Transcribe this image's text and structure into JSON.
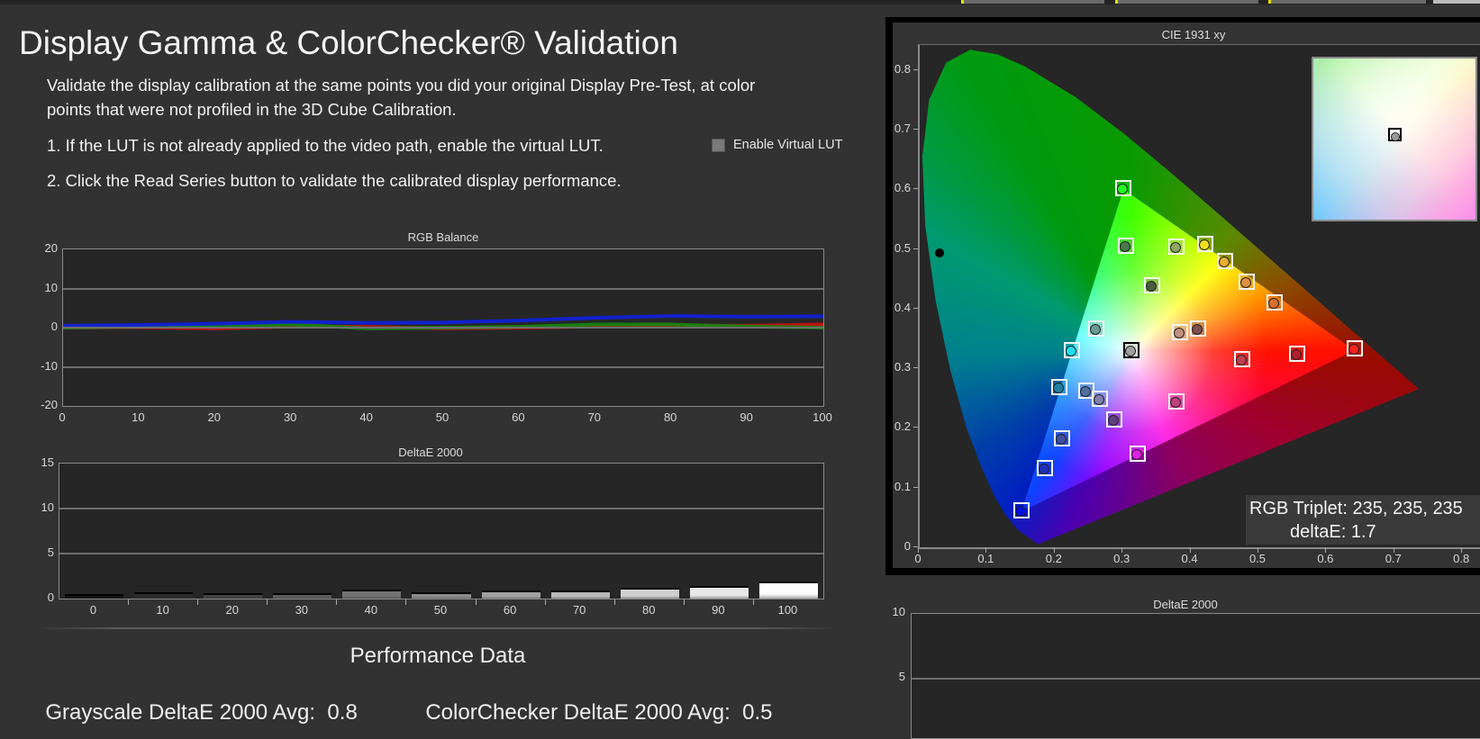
{
  "header": {
    "title": "Display Gamma & ColorChecker® Validation",
    "intro_line1": "Validate the display calibration at the same points you did your original Display Pre-Test, at color",
    "intro_line2": "points that were not profiled in the 3D Cube Calibration.",
    "step1": "1.  If the LUT is not already applied to the video path, enable the virtual LUT.",
    "step2": "2.  Click the Read Series button to validate the calibrated display performance."
  },
  "virtual_lut": {
    "label": "Enable Virtual LUT",
    "checked": false
  },
  "performance": {
    "title": "Performance Data",
    "grayscale_label": "Grayscale DeltaE 2000 Avg:",
    "grayscale_value": "0.8",
    "colorchecker_label": "ColorChecker DeltaE 2000 Avg:",
    "colorchecker_value": "0.5"
  },
  "readout": {
    "triplet": "RGB Triplet: 235, 235, 235",
    "deltae": "deltaE: 1.7"
  },
  "chart_data": [
    {
      "type": "line",
      "title": "RGB Balance",
      "x": [
        0,
        10,
        20,
        30,
        40,
        50,
        60,
        70,
        80,
        90,
        100
      ],
      "xticks": [
        "0",
        "10",
        "20",
        "30",
        "40",
        "50",
        "60",
        "70",
        "80",
        "90",
        "100"
      ],
      "yticks": [
        "20",
        "10",
        "0",
        "-10",
        "-20"
      ],
      "ylim": [
        -20,
        20
      ],
      "grid": true,
      "series": [
        {
          "name": "Red",
          "color": "#d01010",
          "values": [
            0,
            0.1,
            -0.2,
            0.3,
            0.2,
            -0.2,
            0,
            0.3,
            0.5,
            0.5,
            0.8
          ]
        },
        {
          "name": "Green",
          "color": "#108a10",
          "values": [
            0,
            0.2,
            0.3,
            0.8,
            -0.2,
            0,
            0.2,
            0.8,
            0.8,
            0.3,
            0
          ]
        },
        {
          "name": "Blue",
          "color": "#1020e0",
          "values": [
            0.5,
            0.7,
            1.0,
            1.5,
            1.2,
            1.3,
            1.8,
            2.5,
            3.0,
            2.8,
            2.9
          ]
        }
      ]
    },
    {
      "type": "bar",
      "title": "DeltaE 2000",
      "categories": [
        "0",
        "10",
        "20",
        "30",
        "40",
        "50",
        "60",
        "70",
        "80",
        "90",
        "100"
      ],
      "values": [
        0.3,
        0.5,
        0.4,
        0.4,
        0.8,
        0.5,
        0.7,
        0.7,
        1.0,
        1.2,
        1.7
      ],
      "yticks": [
        "15",
        "10",
        "5",
        "0"
      ],
      "ylim": [
        0,
        15
      ],
      "grid": true
    },
    {
      "type": "scatter",
      "title": "CIE 1931 xy",
      "xlim": [
        0,
        0.8
      ],
      "ylim": [
        0,
        0.8
      ],
      "xticks": [
        "0",
        "0.1",
        "0.2",
        "0.3",
        "0.4",
        "0.5",
        "0.6",
        "0.7",
        "0.8"
      ],
      "yticks": [
        "0.8",
        "0.7",
        "0.6",
        "0.5",
        "0.4",
        "0.3",
        "0.2",
        "0.1",
        "0"
      ],
      "gamut": {
        "red": [
          0.64,
          0.33
        ],
        "green": [
          0.3,
          0.6
        ],
        "blue": [
          0.15,
          0.06
        ],
        "white": [
          0.3127,
          0.329
        ]
      },
      "spectral_locus": [
        [
          0.1741,
          0.005
        ],
        [
          0.144,
          0.0297
        ],
        [
          0.1241,
          0.0578
        ],
        [
          0.1096,
          0.0868
        ],
        [
          0.0913,
          0.1327
        ],
        [
          0.0687,
          0.2007
        ],
        [
          0.0454,
          0.295
        ],
        [
          0.0235,
          0.4127
        ],
        [
          0.0082,
          0.5384
        ],
        [
          0.0039,
          0.6548
        ],
        [
          0.0139,
          0.7502
        ],
        [
          0.0389,
          0.812
        ],
        [
          0.0743,
          0.8338
        ],
        [
          0.1142,
          0.8262
        ],
        [
          0.1547,
          0.8059
        ],
        [
          0.2296,
          0.7543
        ],
        [
          0.3016,
          0.6923
        ],
        [
          0.3731,
          0.6245
        ],
        [
          0.4441,
          0.5547
        ],
        [
          0.5125,
          0.4866
        ],
        [
          0.5752,
          0.4242
        ],
        [
          0.627,
          0.3725
        ],
        [
          0.6915,
          0.3083
        ],
        [
          0.7347,
          0.2653
        ]
      ],
      "points": [
        {
          "x": 0.3,
          "y": 0.602,
          "color": "#20ff20"
        },
        {
          "x": 0.304,
          "y": 0.505,
          "color": "#4a7a4a"
        },
        {
          "x": 0.378,
          "y": 0.504,
          "color": "#8fa860"
        },
        {
          "x": 0.42,
          "y": 0.509,
          "color": "#f0e020"
        },
        {
          "x": 0.45,
          "y": 0.479,
          "color": "#e8b030"
        },
        {
          "x": 0.481,
          "y": 0.445,
          "color": "#e09040"
        },
        {
          "x": 0.522,
          "y": 0.41,
          "color": "#d87030"
        },
        {
          "x": 0.342,
          "y": 0.439,
          "color": "#4a5a40"
        },
        {
          "x": 0.26,
          "y": 0.366,
          "color": "#6a9a90"
        },
        {
          "x": 0.224,
          "y": 0.331,
          "color": "#20e0f0"
        },
        {
          "x": 0.312,
          "y": 0.331,
          "color": "#a0a0a0",
          "selected": true
        },
        {
          "x": 0.383,
          "y": 0.361,
          "color": "#c09080"
        },
        {
          "x": 0.41,
          "y": 0.367,
          "color": "#805050"
        },
        {
          "x": 0.475,
          "y": 0.315,
          "color": "#c04050"
        },
        {
          "x": 0.556,
          "y": 0.324,
          "color": "#b02030"
        },
        {
          "x": 0.641,
          "y": 0.333,
          "color": "#ff2020"
        },
        {
          "x": 0.206,
          "y": 0.268,
          "color": "#2080a0"
        },
        {
          "x": 0.245,
          "y": 0.263,
          "color": "#5070a0"
        },
        {
          "x": 0.265,
          "y": 0.249,
          "color": "#8080b0"
        },
        {
          "x": 0.287,
          "y": 0.214,
          "color": "#604080"
        },
        {
          "x": 0.378,
          "y": 0.244,
          "color": "#c04080"
        },
        {
          "x": 0.209,
          "y": 0.182,
          "color": "#4050a0"
        },
        {
          "x": 0.321,
          "y": 0.157,
          "color": "#e020e0"
        },
        {
          "x": 0.185,
          "y": 0.133,
          "color": "#2030c0"
        },
        {
          "x": 0.15,
          "y": 0.062,
          "color": "#0010e0"
        }
      ],
      "reference_dot": {
        "x": 0.029,
        "y": 0.493
      }
    },
    {
      "type": "bar",
      "title": "DeltaE 2000",
      "categories": [],
      "values": [],
      "yticks": [
        "10",
        "5"
      ],
      "ylim": [
        0,
        10
      ],
      "grid": true
    }
  ]
}
